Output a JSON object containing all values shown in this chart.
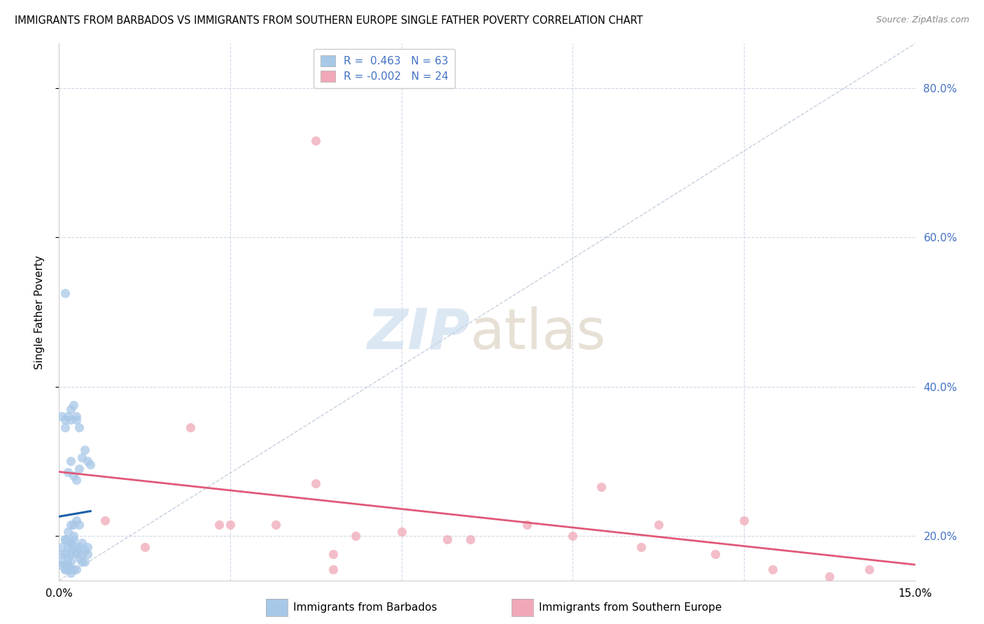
{
  "title": "IMMIGRANTS FROM BARBADOS VS IMMIGRANTS FROM SOUTHERN EUROPE SINGLE FATHER POVERTY CORRELATION CHART",
  "source": "Source: ZipAtlas.com",
  "ylabel": "Single Father Poverty",
  "xmin": 0.0,
  "xmax": 0.15,
  "ymin": 0.14,
  "ymax": 0.86,
  "yticks": [
    0.2,
    0.4,
    0.6,
    0.8
  ],
  "ytick_labels": [
    "20.0%",
    "40.0%",
    "60.0%",
    "80.0%"
  ],
  "xticks": [
    0.0,
    0.03,
    0.06,
    0.09,
    0.12,
    0.15
  ],
  "xtick_labels": [
    "0.0%",
    "",
    "",
    "",
    "",
    "15.0%"
  ],
  "barbados_R": 0.463,
  "barbados_N": 63,
  "southern_europe_R": -0.002,
  "southern_europe_N": 24,
  "color_barbados": "#a8c8e8",
  "color_barbados_line": "#1a5fa8",
  "color_southern": "#f0a8b8",
  "color_southern_line": "#e05878",
  "color_diag": "#b8c4d8",
  "barbados_x": [
    0.0005,
    0.001,
    0.001,
    0.0015,
    0.0015,
    0.002,
    0.002,
    0.002,
    0.002,
    0.0025,
    0.0025,
    0.003,
    0.003,
    0.003,
    0.0035,
    0.0035,
    0.004,
    0.004,
    0.0045,
    0.005,
    0.0005,
    0.001,
    0.001,
    0.0015,
    0.002,
    0.002,
    0.0025,
    0.003,
    0.003,
    0.0035,
    0.0005,
    0.001,
    0.0015,
    0.002,
    0.0025,
    0.003,
    0.0035,
    0.004,
    0.0045,
    0.005,
    0.0005,
    0.0005,
    0.001,
    0.001,
    0.0015,
    0.0015,
    0.002,
    0.002,
    0.0025,
    0.003,
    0.001,
    0.0015,
    0.002,
    0.0025,
    0.003,
    0.0035,
    0.004,
    0.0045,
    0.005,
    0.0055,
    0.001,
    0.0015,
    0.002
  ],
  "barbados_y": [
    0.185,
    0.195,
    0.175,
    0.205,
    0.17,
    0.215,
    0.19,
    0.18,
    0.175,
    0.215,
    0.2,
    0.22,
    0.185,
    0.175,
    0.215,
    0.17,
    0.165,
    0.175,
    0.165,
    0.175,
    0.36,
    0.355,
    0.345,
    0.36,
    0.355,
    0.37,
    0.375,
    0.36,
    0.355,
    0.345,
    0.175,
    0.195,
    0.185,
    0.19,
    0.195,
    0.18,
    0.185,
    0.19,
    0.18,
    0.185,
    0.165,
    0.16,
    0.155,
    0.16,
    0.16,
    0.155,
    0.15,
    0.155,
    0.155,
    0.155,
    0.525,
    0.285,
    0.3,
    0.28,
    0.275,
    0.29,
    0.305,
    0.315,
    0.3,
    0.295,
    0.155,
    0.16,
    0.165
  ],
  "southern_x": [
    0.045,
    0.023,
    0.028,
    0.03,
    0.038,
    0.045,
    0.052,
    0.06,
    0.068,
    0.072,
    0.082,
    0.09,
    0.095,
    0.102,
    0.115,
    0.125,
    0.135,
    0.142,
    0.105,
    0.12,
    0.048,
    0.008,
    0.015,
    0.048
  ],
  "southern_y": [
    0.73,
    0.345,
    0.215,
    0.215,
    0.215,
    0.27,
    0.2,
    0.205,
    0.195,
    0.195,
    0.215,
    0.2,
    0.265,
    0.185,
    0.175,
    0.155,
    0.145,
    0.155,
    0.215,
    0.22,
    0.175,
    0.22,
    0.185,
    0.155
  ]
}
